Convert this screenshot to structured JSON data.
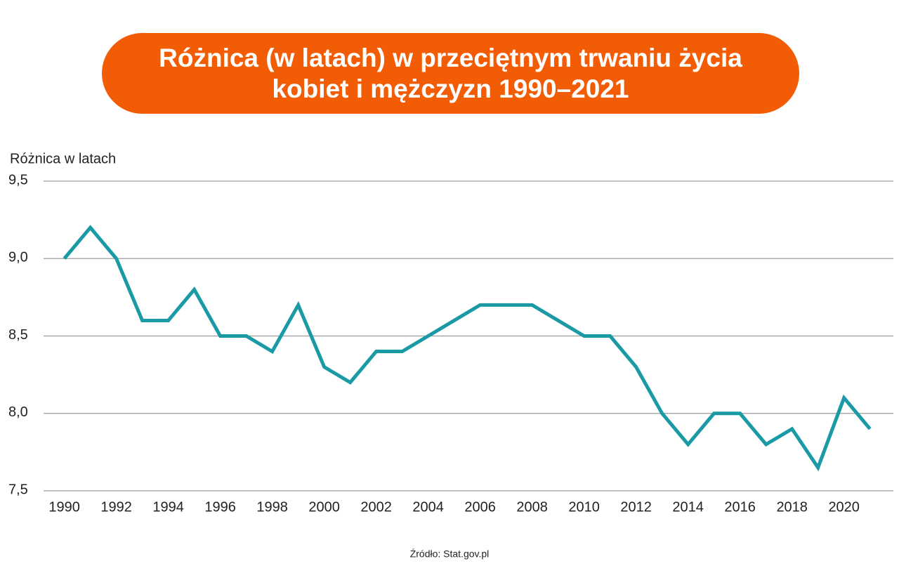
{
  "chart_data": {
    "type": "line",
    "title": "Różnica (w latach) w przeciętnym trwaniu życia kobiet i mężczyzn 1990–2021",
    "y_label": "Różnica w latach",
    "source": "Źródło: Stat.gov.pl",
    "x": [
      1990,
      1991,
      1992,
      1993,
      1994,
      1995,
      1996,
      1997,
      1998,
      1999,
      2000,
      2001,
      2002,
      2003,
      2004,
      2005,
      2006,
      2007,
      2008,
      2009,
      2010,
      2011,
      2012,
      2013,
      2014,
      2015,
      2016,
      2017,
      2018,
      2019,
      2020,
      2021
    ],
    "series": [
      {
        "name": "Różnica w latach",
        "color": "#1a9aa5",
        "values": [
          9.0,
          9.2,
          9.0,
          8.6,
          8.6,
          8.8,
          8.5,
          8.5,
          8.4,
          8.7,
          8.3,
          8.2,
          8.4,
          8.4,
          8.5,
          8.6,
          8.7,
          8.7,
          8.7,
          8.6,
          8.5,
          8.5,
          8.3,
          8.0,
          7.8,
          8.0,
          8.0,
          7.8,
          7.9,
          7.65,
          8.1,
          7.9
        ]
      }
    ],
    "xlim": [
      1989.2,
      2021.9
    ],
    "xticks": [
      1990,
      1992,
      1994,
      1996,
      1998,
      2000,
      2002,
      2004,
      2006,
      2008,
      2010,
      2012,
      2014,
      2016,
      2018,
      2020
    ],
    "ylim": [
      7.5,
      9.5
    ],
    "yticks": [
      {
        "value": 7.5,
        "label": "7,5"
      },
      {
        "value": 8.0,
        "label": "8,0"
      },
      {
        "value": 8.5,
        "label": "8,5"
      },
      {
        "value": 9.0,
        "label": "9,0"
      },
      {
        "value": 9.5,
        "label": "9,5"
      }
    ],
    "grid": true
  }
}
